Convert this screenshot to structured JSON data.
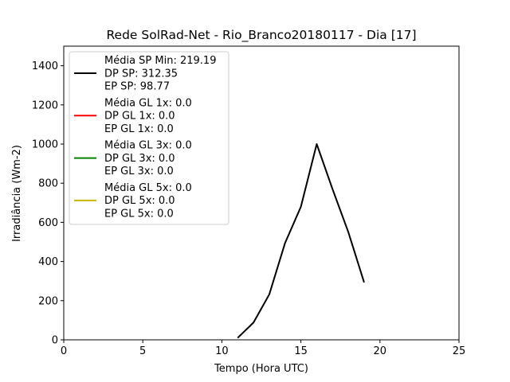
{
  "chart_data": {
    "type": "line",
    "title": "Rede SolRad-Net - Rio_Branco20180117 - Dia [17]",
    "xlabel": "Tempo (Hora UTC)",
    "ylabel": "Irradiância (Wm-2)",
    "xlim": [
      0,
      25
    ],
    "ylim": [
      0,
      1500
    ],
    "xticks": [
      0,
      5,
      10,
      15,
      20,
      25
    ],
    "yticks": [
      0,
      200,
      400,
      600,
      800,
      1000,
      1200,
      1400
    ],
    "grid": false,
    "legend_position": "top-left",
    "series": [
      {
        "name": "SP",
        "color": "#000000",
        "legend": [
          "Média SP Min: 219.19",
          "DP SP: 312.35",
          "EP SP: 98.77"
        ],
        "x": [
          11,
          12,
          13,
          14,
          15,
          16,
          17,
          18,
          19
        ],
        "y": [
          10,
          88,
          232,
          495,
          680,
          1000,
          770,
          550,
          293
        ]
      },
      {
        "name": "GL 1x",
        "color": "#ff0000",
        "legend": [
          "Média GL 1x: 0.0",
          "DP GL 1x: 0.0",
          "EP GL 1x: 0.0"
        ],
        "x": [],
        "y": []
      },
      {
        "name": "GL 3x",
        "color": "#008000",
        "legend": [
          "Média GL 3x: 0.0",
          "DP GL 3x: 0.0",
          "EP GL 3x: 0.0"
        ],
        "x": [],
        "y": []
      },
      {
        "name": "GL 5x",
        "color": "#c8b400",
        "legend": [
          "Média GL 5x: 0.0",
          "DP GL 5x: 0.0",
          "EP GL 5x: 0.0"
        ],
        "x": [],
        "y": []
      }
    ]
  }
}
